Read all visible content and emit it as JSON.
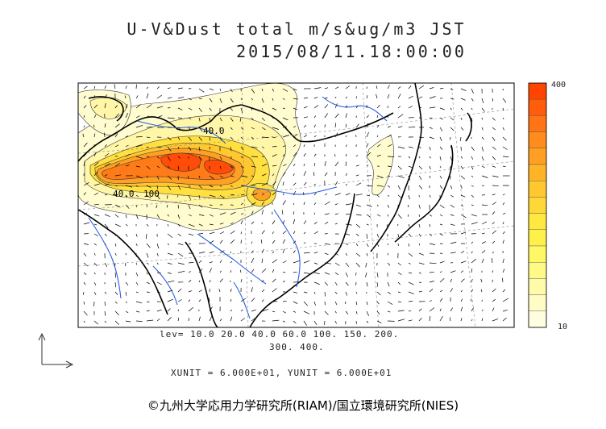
{
  "title": {
    "line1": "U-V&Dust total m/s&ug/m3 JST",
    "line2": "2015/08/11.18:00:00"
  },
  "contour_labels": [
    "40.0",
    "40.0",
    "100"
  ],
  "levels_line1": "lev= 10.0 20.0 40.0 60.0 100. 150. 200.",
  "levels_line2": "300. 400.",
  "units": "XUNIT = 6.000E+01, YUNIT = 6.000E+01",
  "colorbar": {
    "max_label": "400",
    "min_label": "10",
    "colors": [
      "#ff4400",
      "#ff5c0c",
      "#ff7414",
      "#ff8c1c",
      "#ffa024",
      "#ffb428",
      "#ffc830",
      "#ffd838",
      "#ffe840",
      "#fff04c",
      "#fff866",
      "#fffa88",
      "#fffba8",
      "#fffcc6",
      "#fffde0"
    ]
  },
  "credit": "©九州大学応用力学研究所(RIAM)/国立環境研究所(NIES)"
}
